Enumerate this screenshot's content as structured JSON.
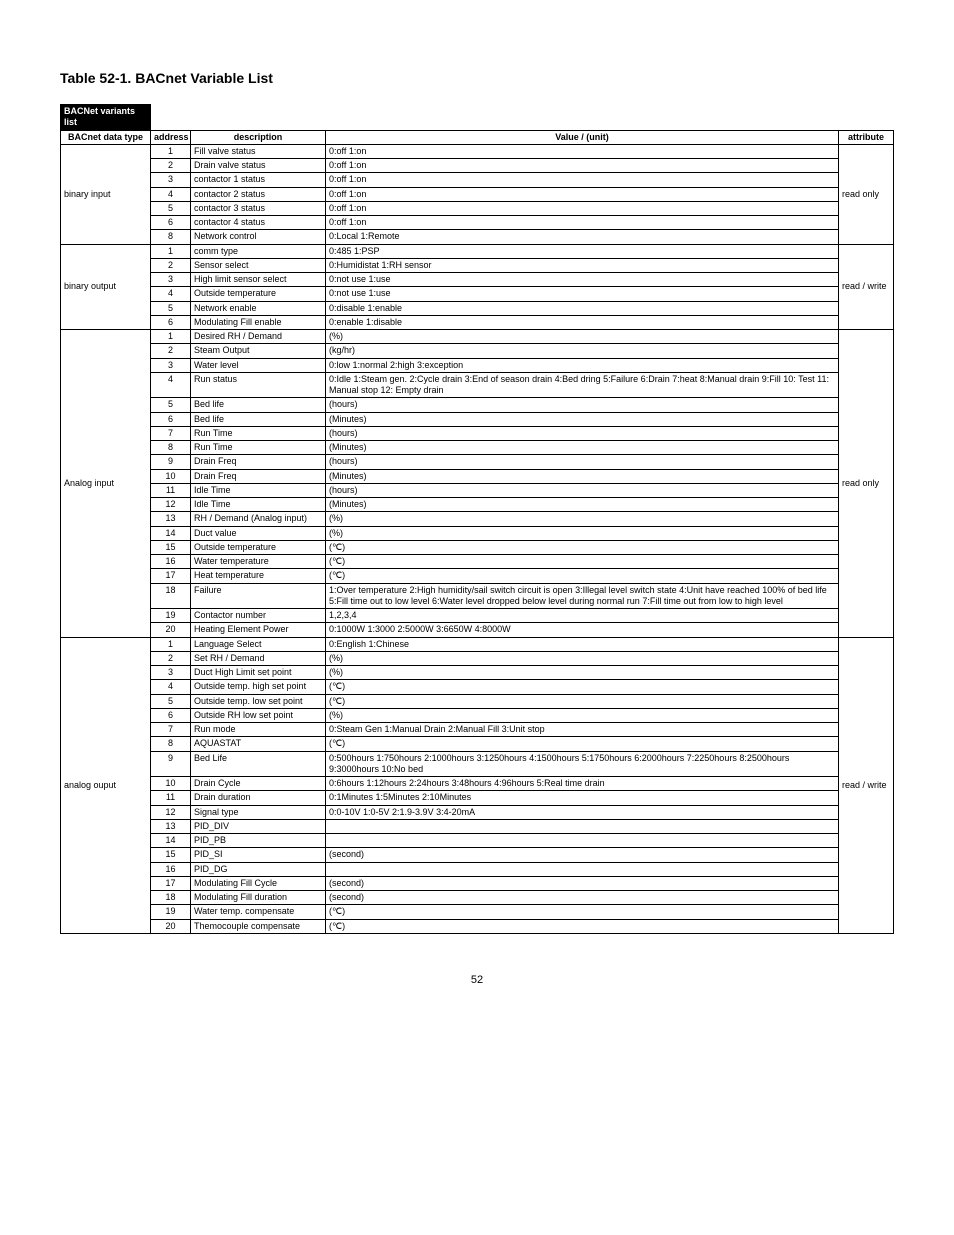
{
  "title": "Table 52-1.  BACnet Variable List",
  "super_header": "BACNet variants list",
  "headers": {
    "type": "BACnet data type",
    "address": "address",
    "description": "description",
    "value": "Value / (unit)",
    "attribute": "attribute"
  },
  "groups": [
    {
      "type": "binary input",
      "attribute": "read only",
      "rows": [
        {
          "addr": "1",
          "desc": "Fill valve status",
          "value": "0:off 1:on"
        },
        {
          "addr": "2",
          "desc": "Drain valve status",
          "value": "0:off 1:on"
        },
        {
          "addr": "3",
          "desc": "contactor 1 status",
          "value": "0:off 1:on"
        },
        {
          "addr": "4",
          "desc": "contactor 2 status",
          "value": "0:off 1:on"
        },
        {
          "addr": "5",
          "desc": "contactor 3 status",
          "value": "0:off 1:on"
        },
        {
          "addr": "6",
          "desc": "contactor 4 status",
          "value": "0:off 1:on"
        },
        {
          "addr": "8",
          "desc": "Network control",
          "value": "0:Local 1:Remote"
        }
      ]
    },
    {
      "type": "binary output",
      "attribute": "read / write",
      "rows": [
        {
          "addr": "1",
          "desc": "comm type",
          "value": "0:485 1:PSP"
        },
        {
          "addr": "2",
          "desc": "Sensor select",
          "value": "0:Humidistat 1:RH sensor"
        },
        {
          "addr": "3",
          "desc": "High limit sensor select",
          "value": "0:not use  1:use"
        },
        {
          "addr": "4",
          "desc": "Outside temperature",
          "value": "0:not use  1:use"
        },
        {
          "addr": "5",
          "desc": "Network enable",
          "value": "0:disable 1:enable"
        },
        {
          "addr": "6",
          "desc": "Modulating Fill enable",
          "value": "0:enable 1:disable"
        }
      ]
    },
    {
      "type": "Analog input",
      "attribute": "read only",
      "rows": [
        {
          "addr": "1",
          "desc": "Desired RH / Demand",
          "value": "(%)"
        },
        {
          "addr": "2",
          "desc": "Steam Output",
          "value": "(kg/hr)"
        },
        {
          "addr": "3",
          "desc": "Water level",
          "value": "0:low 1:normal 2:high 3:exception"
        },
        {
          "addr": "4",
          "desc": "Run status",
          "value": "0:Idle 1:Steam gen. 2:Cycle drain 3:End of season drain 4:Bed dring 5:Failure 6:Drain 7:heat 8:Manual drain 9:Fill 10: Test 11: Manual stop 12: Empty drain"
        },
        {
          "addr": "5",
          "desc": "Bed life",
          "value": "(hours)"
        },
        {
          "addr": "6",
          "desc": "Bed life",
          "value": "(Minutes)"
        },
        {
          "addr": "7",
          "desc": "Run Time",
          "value": "(hours)"
        },
        {
          "addr": "8",
          "desc": "Run Time",
          "value": "(Minutes)"
        },
        {
          "addr": "9",
          "desc": "Drain Freq",
          "value": "(hours)"
        },
        {
          "addr": "10",
          "desc": "Drain Freq",
          "value": "(Minutes)"
        },
        {
          "addr": "11",
          "desc": "Idle Time",
          "value": "(hours)"
        },
        {
          "addr": "12",
          "desc": "Idle Time",
          "value": "(Minutes)"
        },
        {
          "addr": "13",
          "desc": "RH / Demand (Analog input)",
          "value": "(%)"
        },
        {
          "addr": "14",
          "desc": "Duct value",
          "value": "(%)"
        },
        {
          "addr": "15",
          "desc": "Outside temperature",
          "value": "(℃)"
        },
        {
          "addr": "16",
          "desc": "Water temperature",
          "value": "(℃)"
        },
        {
          "addr": "17",
          "desc": "Heat temperature",
          "value": "(℃)"
        },
        {
          "addr": "18",
          "desc": "Failure",
          "value": "1:Over temperature 2:High humidity/sail switch circuit is open  3:Illegal level switch state 4:Unit have reached 100% of bed life 5:Fill time out to low level   6:Water level dropped below level during normal run 7:Fill time out from low to high level"
        },
        {
          "addr": "19",
          "desc": "Contactor number",
          "value": "1,2,3,4"
        },
        {
          "addr": "20",
          "desc": "Heating Element Power",
          "value": "0:1000W 1:3000 2:5000W 3:6650W 4:8000W"
        }
      ]
    },
    {
      "type": "analog ouput",
      "attribute": "read / write",
      "rows": [
        {
          "addr": "1",
          "desc": "Language Select",
          "value": "0:English 1:Chinese"
        },
        {
          "addr": "2",
          "desc": "Set RH / Demand",
          "value": "(%)"
        },
        {
          "addr": "3",
          "desc": "Duct High Limit set point",
          "value": "(%)"
        },
        {
          "addr": "4",
          "desc": "Outside temp. high set point",
          "value": "(℃)"
        },
        {
          "addr": "5",
          "desc": "Outside temp. low set point",
          "value": "(℃)"
        },
        {
          "addr": "6",
          "desc": "Outside RH low set point",
          "value": "(%)"
        },
        {
          "addr": "7",
          "desc": "Run mode",
          "value": "0:Steam Gen 1:Manual Drain 2:Manual Fill 3:Unit stop"
        },
        {
          "addr": "8",
          "desc": "AQUASTAT",
          "value": "(℃)"
        },
        {
          "addr": "9",
          "desc": "Bed Life",
          "value": "0:500hours 1:750hours 2:1000hours 3:1250hours  4:1500hours 5:1750hours 6:2000hours 7:2250hours 8:2500hours 9:3000hours 10:No bed"
        },
        {
          "addr": "10",
          "desc": "Drain Cycle",
          "value": "0:6hours 1:12hours 2:24hours 3:48hours 4:96hours 5:Real time drain"
        },
        {
          "addr": "11",
          "desc": "Drain duration",
          "value": "0:1Minutes 1:5Minutes 2:10Minutes"
        },
        {
          "addr": "12",
          "desc": "Signal type",
          "value": "0:0-10V 1:0-5V 2:1.9-3.9V 3:4-20mA"
        },
        {
          "addr": "13",
          "desc": "PID_DIV",
          "value": ""
        },
        {
          "addr": "14",
          "desc": "PID_PB",
          "value": ""
        },
        {
          "addr": "15",
          "desc": "PID_SI",
          "value": "(second)"
        },
        {
          "addr": "16",
          "desc": "PID_DG",
          "value": ""
        },
        {
          "addr": "17",
          "desc": "Modulating Fill Cycle",
          "value": "(second)"
        },
        {
          "addr": "18",
          "desc": "Modulating Fill duration",
          "value": "(second)"
        },
        {
          "addr": "19",
          "desc": "Water temp. compensate",
          "value": "(℃)"
        },
        {
          "addr": "20",
          "desc": "Themocouple compensate",
          "value": "(℃)"
        }
      ]
    }
  ],
  "page_number": "52"
}
